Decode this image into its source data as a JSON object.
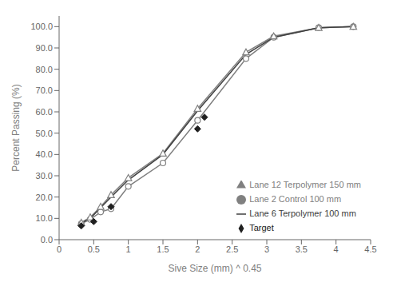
{
  "chart_data": {
    "type": "line",
    "xlabel": "Sive Size (mm) ^ 0.45",
    "ylabel": "Percent Passing (%)",
    "xlim": [
      0,
      4.5
    ],
    "ylim": [
      0,
      105
    ],
    "xticks": [
      0,
      0.5,
      1.0,
      1.5,
      2.0,
      2.5,
      3.0,
      3.5,
      4.0,
      4.5
    ],
    "yticks": [
      {
        "value": 0,
        "label": "0.0"
      },
      {
        "value": 10,
        "label": "10.0"
      },
      {
        "value": 20,
        "label": "20.0"
      },
      {
        "value": 30,
        "label": "30.0"
      },
      {
        "value": 40,
        "label": "40.0"
      },
      {
        "value": 50,
        "label": "50.0"
      },
      {
        "value": 60,
        "label": "60.0"
      },
      {
        "value": 70,
        "label": "70.0"
      },
      {
        "value": 80,
        "label": "80.0"
      },
      {
        "value": 90,
        "label": "90.0"
      },
      {
        "value": 100,
        "label": "100.0"
      }
    ],
    "grid": false,
    "legend": "right",
    "series": [
      {
        "name": "Lane 2 Control 100 mm",
        "color": "#808080",
        "marker": "circle",
        "line_style": "solid",
        "x": [
          0.32,
          0.45,
          0.6,
          0.75,
          1.0,
          1.5,
          2.0,
          2.7,
          3.1,
          3.75,
          4.25
        ],
        "values": [
          7.5,
          9.5,
          13.0,
          14.5,
          25.0,
          36.0,
          56.0,
          85.0,
          95.0,
          99.5,
          100.0
        ]
      },
      {
        "name": "Lane 12 Terpolymer 150 mm",
        "color": "#808080",
        "marker": "triangle",
        "line_style": "solid",
        "x": [
          0.32,
          0.45,
          0.6,
          0.75,
          1.0,
          1.5,
          2.0,
          2.7,
          3.1,
          3.75,
          4.25
        ],
        "values": [
          8.0,
          10.5,
          15.5,
          21.0,
          29.0,
          40.5,
          61.5,
          88.0,
          95.5,
          99.5,
          100.0
        ]
      },
      {
        "name": "Lane 6 Terpolymer 100 mm",
        "color": "#404040",
        "marker": "none",
        "line_style": "solid",
        "x": [
          0.32,
          0.45,
          0.6,
          0.75,
          1.0,
          1.5,
          2.0,
          2.7,
          3.1,
          3.75,
          4.25
        ],
        "values": [
          7.8,
          10.0,
          15.0,
          20.0,
          28.0,
          40.0,
          60.5,
          87.0,
          95.0,
          99.5,
          100.0
        ]
      },
      {
        "name": "Target",
        "color": "#202020",
        "marker": "diamond",
        "line_style": "none",
        "x": [
          0.32,
          0.5,
          0.75,
          2.0,
          2.1
        ],
        "values": [
          6.5,
          8.5,
          15.5,
          52.0,
          57.5
        ]
      }
    ]
  }
}
